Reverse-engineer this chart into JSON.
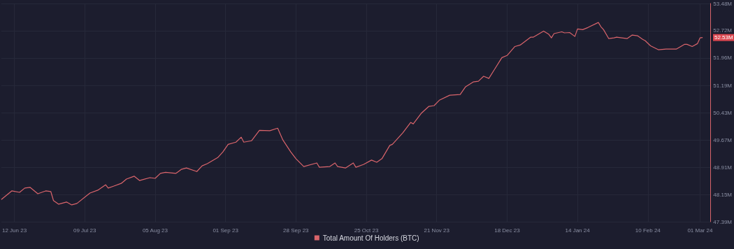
{
  "chart_data": {
    "type": "line",
    "x": [
      "2023-06-07",
      "2023-06-11",
      "2023-06-14",
      "2023-06-16",
      "2023-06-18",
      "2023-06-21",
      "2023-06-24",
      "2023-06-26",
      "2023-06-27",
      "2023-06-29",
      "2023-07-02",
      "2023-07-04",
      "2023-07-06",
      "2023-07-11",
      "2023-07-14",
      "2023-07-17",
      "2023-07-18",
      "2023-07-20",
      "2023-07-23",
      "2023-07-25",
      "2023-07-28",
      "2023-07-30",
      "2023-08-03",
      "2023-08-05",
      "2023-08-07",
      "2023-08-09",
      "2023-08-13",
      "2023-08-15",
      "2023-08-17",
      "2023-08-21",
      "2023-08-23",
      "2023-08-25",
      "2023-08-29",
      "2023-08-31",
      "2023-09-02",
      "2023-09-05",
      "2023-09-07",
      "2023-09-08",
      "2023-09-11",
      "2023-09-14",
      "2023-09-18",
      "2023-09-21",
      "2023-09-23",
      "2023-09-26",
      "2023-09-28",
      "2023-10-01",
      "2023-10-06",
      "2023-10-07",
      "2023-10-11",
      "2023-10-13",
      "2023-10-14",
      "2023-10-17",
      "2023-10-20",
      "2023-10-21",
      "2023-10-24",
      "2023-10-27",
      "2023-10-29",
      "2023-10-31",
      "2023-11-03",
      "2023-11-04",
      "2023-11-08",
      "2023-11-11",
      "2023-11-12",
      "2023-11-15",
      "2023-11-18",
      "2023-11-20",
      "2023-11-22",
      "2023-11-26",
      "2023-11-30",
      "2023-12-02",
      "2023-12-05",
      "2023-12-07",
      "2023-12-09",
      "2023-12-11",
      "2023-12-13",
      "2023-12-16",
      "2023-12-18",
      "2023-12-21",
      "2023-12-23",
      "2023-12-27",
      "2023-12-28",
      "2024-01-01",
      "2024-01-03",
      "2024-01-04",
      "2024-01-05",
      "2024-01-08",
      "2024-01-09",
      "2024-01-11",
      "2024-01-13",
      "2024-01-14",
      "2024-01-16",
      "2024-01-18",
      "2024-01-22",
      "2024-01-23",
      "2024-01-24",
      "2024-01-26",
      "2024-01-28",
      "2024-01-29",
      "2024-02-02",
      "2024-02-04",
      "2024-02-06",
      "2024-02-08",
      "2024-02-09",
      "2024-02-11",
      "2024-02-14",
      "2024-02-17",
      "2024-02-21",
      "2024-02-24",
      "2024-02-25",
      "2024-02-27",
      "2024-02-29",
      "2024-03-01",
      "2024-03-02"
    ],
    "series": [
      {
        "name": "Total Amount Of Holders (BTC)",
        "color": "#d9646b",
        "values": [
          48.01,
          48.25,
          48.21,
          48.33,
          48.35,
          48.17,
          48.25,
          48.23,
          47.98,
          47.88,
          47.94,
          47.86,
          47.9,
          48.19,
          48.27,
          48.42,
          48.33,
          48.38,
          48.46,
          48.58,
          48.66,
          48.54,
          48.62,
          48.6,
          48.74,
          48.77,
          48.74,
          48.85,
          48.89,
          48.79,
          48.95,
          49.01,
          49.18,
          49.34,
          49.55,
          49.61,
          49.75,
          49.61,
          49.65,
          49.94,
          49.93,
          50.0,
          49.67,
          49.34,
          49.15,
          48.93,
          49.03,
          48.91,
          48.93,
          49.03,
          48.93,
          48.89,
          49.03,
          48.91,
          48.99,
          49.11,
          49.05,
          49.15,
          49.52,
          49.55,
          49.87,
          50.16,
          50.12,
          50.41,
          50.61,
          50.63,
          50.78,
          50.92,
          50.94,
          51.15,
          51.29,
          51.31,
          51.45,
          51.39,
          51.62,
          51.97,
          52.03,
          52.28,
          52.32,
          52.54,
          52.54,
          52.71,
          52.62,
          52.52,
          52.64,
          52.69,
          52.66,
          52.67,
          52.56,
          52.77,
          52.75,
          52.81,
          52.95,
          52.83,
          52.75,
          52.5,
          52.52,
          52.54,
          52.5,
          52.6,
          52.58,
          52.48,
          52.44,
          52.3,
          52.19,
          52.21,
          52.21,
          52.34,
          52.34,
          52.28,
          52.36,
          52.52,
          52.53
        ]
      }
    ],
    "xlim": [
      "2023-06-07",
      "2024-03-05"
    ],
    "xticks": [
      {
        "value": "2023-06-12",
        "label": "12 Jun 23"
      },
      {
        "value": "2023-07-09",
        "label": "09 Jul 23"
      },
      {
        "value": "2023-08-05",
        "label": "05 Aug 23"
      },
      {
        "value": "2023-09-01",
        "label": "01 Sep 23"
      },
      {
        "value": "2023-09-28",
        "label": "28 Sep 23"
      },
      {
        "value": "2023-10-25",
        "label": "25 Oct 23"
      },
      {
        "value": "2023-11-21",
        "label": "21 Nov 23"
      },
      {
        "value": "2023-12-18",
        "label": "18 Dec 23"
      },
      {
        "value": "2024-01-14",
        "label": "14 Jan 24"
      },
      {
        "value": "2024-02-10",
        "label": "10 Feb 24"
      },
      {
        "value": "2024-03-01",
        "label": "01 Mar 24"
      }
    ],
    "ylim": [
      47.39,
      53.48
    ],
    "yticks": [
      {
        "value": 47.39,
        "label": "47.39M"
      },
      {
        "value": 48.15,
        "label": "48.15M"
      },
      {
        "value": 48.91,
        "label": "48.91M"
      },
      {
        "value": 49.67,
        "label": "49.67M"
      },
      {
        "value": 50.43,
        "label": "50.43M"
      },
      {
        "value": 51.19,
        "label": "51.19M"
      },
      {
        "value": 51.96,
        "label": "51.96M"
      },
      {
        "value": 52.72,
        "label": "52.72M"
      },
      {
        "value": 53.48,
        "label": "53.48M"
      }
    ],
    "annotations": [
      {
        "text": "52.53M",
        "x": "2024-03-02",
        "y": 52.53
      }
    ],
    "grid": true,
    "legend": "bottom",
    "marker": "none"
  }
}
